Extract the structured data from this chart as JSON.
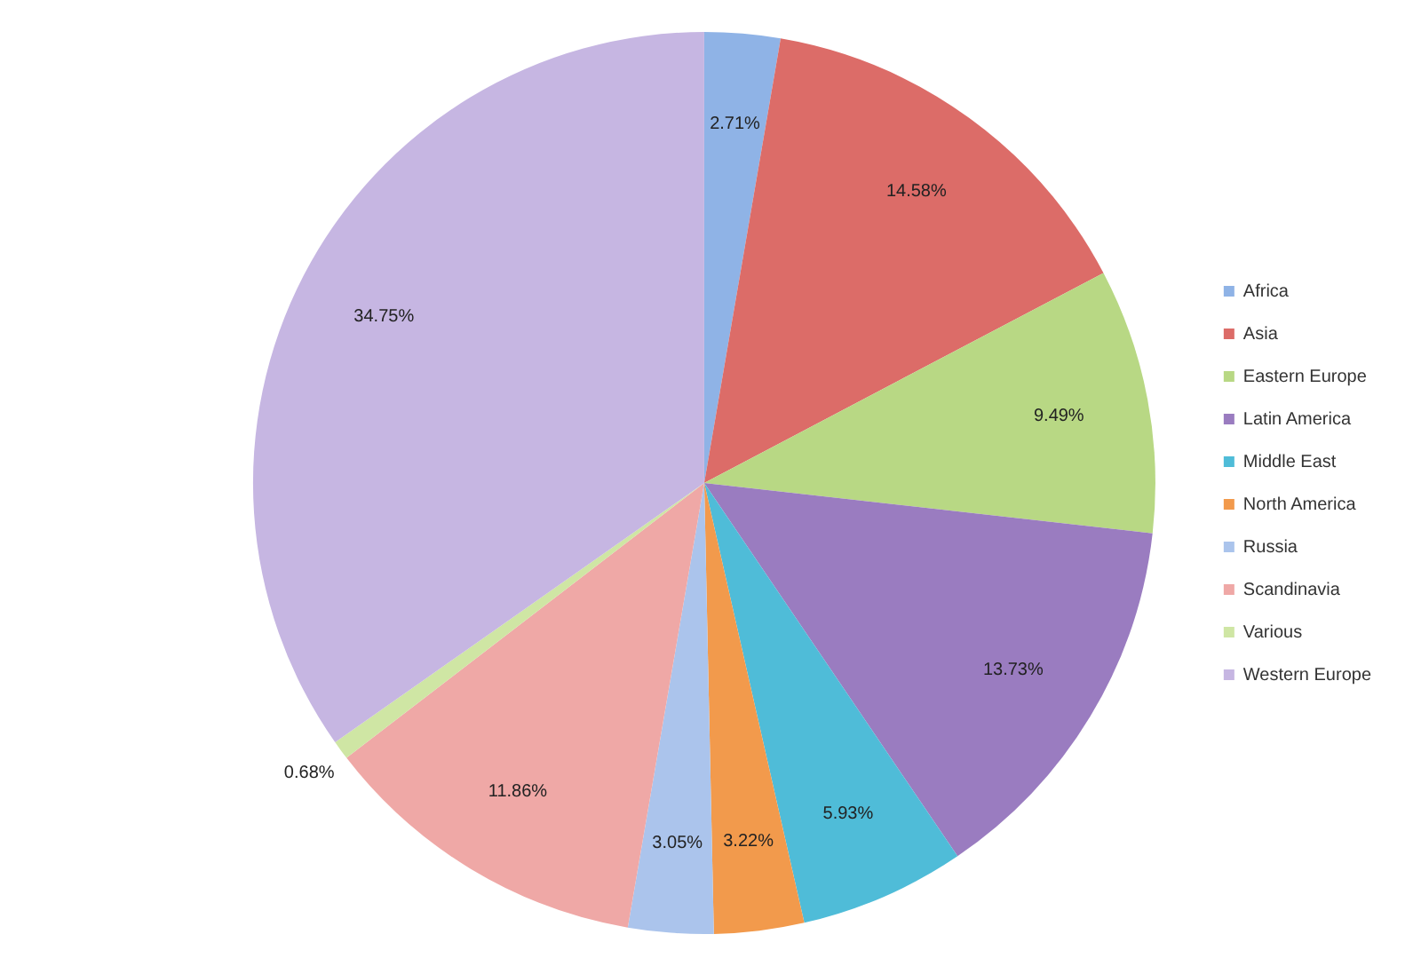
{
  "chart_data": {
    "type": "pie",
    "categories": [
      "Africa",
      "Asia",
      "Eastern Europe",
      "Latin America",
      "Middle East",
      "North America",
      "Russia",
      "Scandinavia",
      "Various",
      "Western Europe"
    ],
    "values": [
      2.71,
      14.58,
      9.49,
      13.73,
      5.93,
      3.22,
      3.05,
      11.86,
      0.68,
      34.75
    ],
    "value_labels": [
      "2.71%",
      "14.58%",
      "9.49%",
      "13.73%",
      "5.93%",
      "3.22%",
      "3.05%",
      "11.86%",
      "0.68%",
      "34.75%"
    ],
    "colors": [
      "#8fb3e6",
      "#dc6c68",
      "#b8d884",
      "#9a7cc0",
      "#4fbcd8",
      "#f29a4c",
      "#abc4ec",
      "#efa8a6",
      "#cfe6a4",
      "#c6b6e2"
    ],
    "legend": "right"
  }
}
